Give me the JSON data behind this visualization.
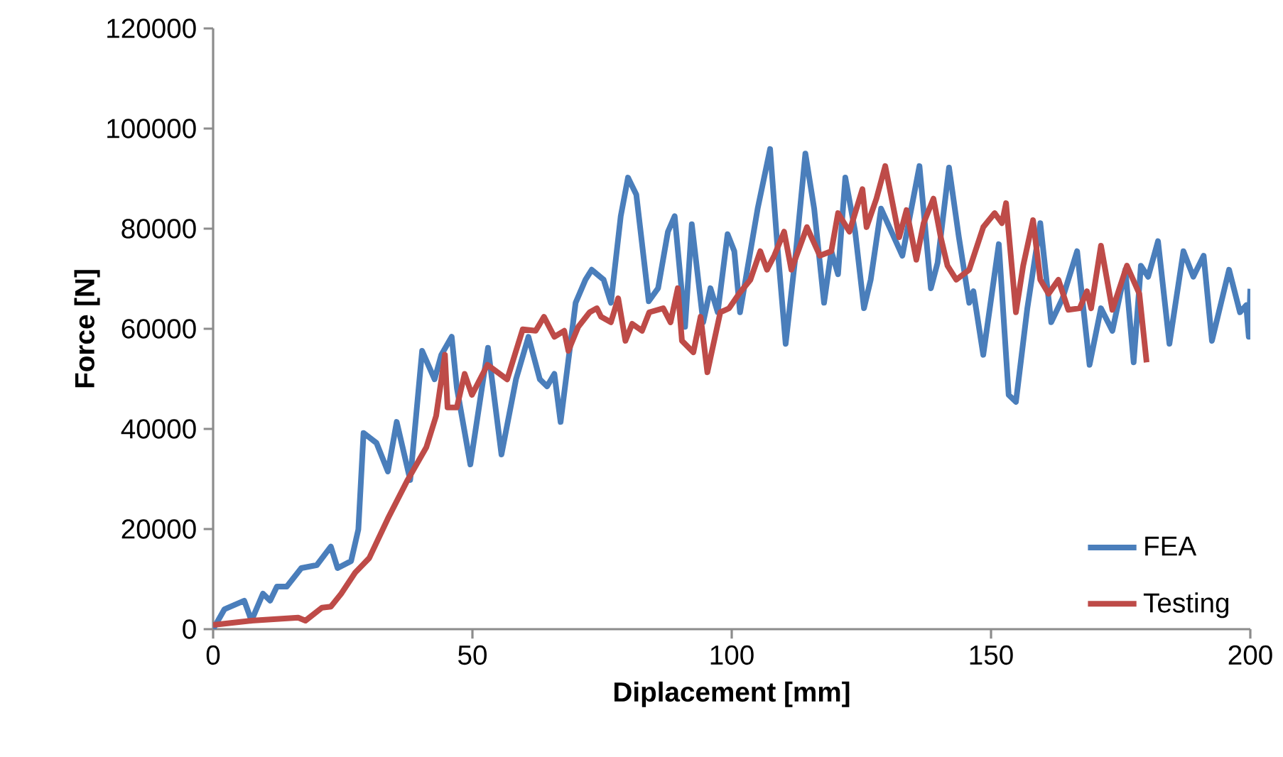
{
  "chart_data": {
    "type": "line",
    "xlabel": "Diplacement [mm]",
    "ylabel": "Force [N]",
    "xlim": [
      0,
      200
    ],
    "xticks": [
      0,
      50,
      100,
      150,
      200
    ],
    "ylim": [
      0,
      120000
    ],
    "yticks": [
      0,
      20000,
      40000,
      60000,
      80000,
      100000,
      120000
    ],
    "grid": false,
    "legend": "bottom right",
    "marker": "none",
    "line_style": "solid",
    "series": [
      {
        "name": "FEA",
        "color": "#4a7ebb",
        "x": [
          0,
          2.2,
          6,
          7.4,
          9.6,
          11,
          12.3,
          14.2,
          17,
          20,
          22.7,
          24,
          26.6,
          28,
          29,
          31.5,
          33.7,
          35.4,
          38,
          40.3,
          42.7,
          44,
          46,
          47,
          49.6,
          53,
          55.6,
          58.4,
          60.8,
          63,
          64.4,
          65.8,
          67,
          69.9,
          71.8,
          73,
          75.3,
          76.7,
          78.6,
          80,
          81.6,
          84,
          85.8,
          87.7,
          89,
          91,
          92.3,
          94.5,
          95.9,
          97.3,
          99.2,
          100.5,
          101.6,
          105,
          107.4,
          108.8,
          110.4,
          112.3,
          114.2,
          115.9,
          117.8,
          119.2,
          120.5,
          121.9,
          123.8,
          125.5,
          126.8,
          128.8,
          132.9,
          136.2,
          138.4,
          139.7,
          141.9,
          143.8,
          145.8,
          146.6,
          148.5,
          151.5,
          153.4,
          154.8,
          157,
          159.5,
          161.6,
          163.8,
          166.6,
          169,
          171.2,
          173.4,
          175.9,
          177.5,
          178.9,
          180.3,
          182.2,
          184.4,
          187.1,
          189,
          191,
          192.6,
          195.9,
          198,
          199.2,
          199.7,
          200
        ],
        "values": [
          0,
          4000,
          5700,
          1700,
          7100,
          5700,
          8500,
          8500,
          12200,
          12800,
          16500,
          12200,
          13600,
          19900,
          39200,
          37200,
          31500,
          41400,
          29800,
          55600,
          49900,
          54800,
          58400,
          48200,
          32900,
          56200,
          34900,
          49900,
          58400,
          49900,
          48500,
          51000,
          41400,
          65200,
          69800,
          71800,
          69800,
          65200,
          82500,
          90200,
          86800,
          65500,
          68100,
          79400,
          82500,
          60400,
          80900,
          61300,
          68100,
          63300,
          78900,
          75500,
          63300,
          84000,
          95900,
          76600,
          57000,
          74600,
          95000,
          84000,
          65200,
          75500,
          70900,
          90200,
          79400,
          64100,
          69800,
          84000,
          74600,
          92500,
          68100,
          73200,
          92200,
          78300,
          65200,
          67500,
          54800,
          76900,
          46800,
          45400,
          64100,
          81100,
          61300,
          66100,
          75500,
          52800,
          64100,
          59600,
          71800,
          53300,
          72600,
          70400,
          77500,
          57000,
          75500,
          70400,
          74600,
          57600,
          71800,
          63300,
          64700,
          58400,
          68000
        ]
      },
      {
        "name": "Testing",
        "color": "#be4b48",
        "x": [
          0,
          7.4,
          16.4,
          17.8,
          21,
          22.7,
          24.7,
          27.4,
          30.1,
          33.7,
          37.5,
          41.1,
          43,
          44.7,
          45.2,
          47,
          48.5,
          49.9,
          52.9,
          56.7,
          59.7,
          62.2,
          63.8,
          65.8,
          67.7,
          68.5,
          70.4,
          72.6,
          74,
          74.8,
          76.7,
          78.1,
          79.5,
          80.8,
          82.7,
          84.1,
          86.8,
          88.2,
          89.6,
          90.4,
          92.6,
          94,
          95.3,
          97.8,
          99.5,
          101.4,
          103.6,
          105.5,
          106.8,
          108.2,
          110.1,
          111.5,
          114.5,
          117,
          119.2,
          120.5,
          122.7,
          125.2,
          126,
          127.9,
          129.6,
          132.3,
          133.7,
          135.6,
          137,
          138.9,
          140.3,
          141.6,
          143.3,
          145.8,
          148.5,
          150.7,
          152.1,
          152.9,
          154.8,
          156.2,
          158.1,
          159.5,
          161.1,
          163,
          164.9,
          167.1,
          168.5,
          169.3,
          171.2,
          173.4,
          176.2,
          178.6,
          180
        ],
        "values": [
          850,
          1700,
          2300,
          1700,
          4300,
          4500,
          7100,
          11300,
          14200,
          22100,
          29800,
          36300,
          42600,
          54800,
          44300,
          44300,
          51000,
          46800,
          52800,
          49900,
          59900,
          59600,
          62400,
          58400,
          59600,
          55600,
          60400,
          63300,
          64100,
          62400,
          61300,
          66100,
          57600,
          61000,
          59600,
          63300,
          64100,
          61300,
          68100,
          57600,
          55300,
          62400,
          51300,
          63300,
          64100,
          67000,
          69800,
          75500,
          71800,
          74600,
          79400,
          71800,
          80300,
          74600,
          75500,
          83100,
          79400,
          87900,
          80300,
          86000,
          92500,
          78300,
          83700,
          73800,
          81100,
          86000,
          78300,
          72600,
          69800,
          71800,
          80300,
          83100,
          81100,
          85100,
          63300,
          72600,
          81700,
          69800,
          67000,
          69800,
          63800,
          64100,
          67500,
          64100,
          76600,
          63800,
          72600,
          67000,
          53300
        ]
      }
    ]
  }
}
